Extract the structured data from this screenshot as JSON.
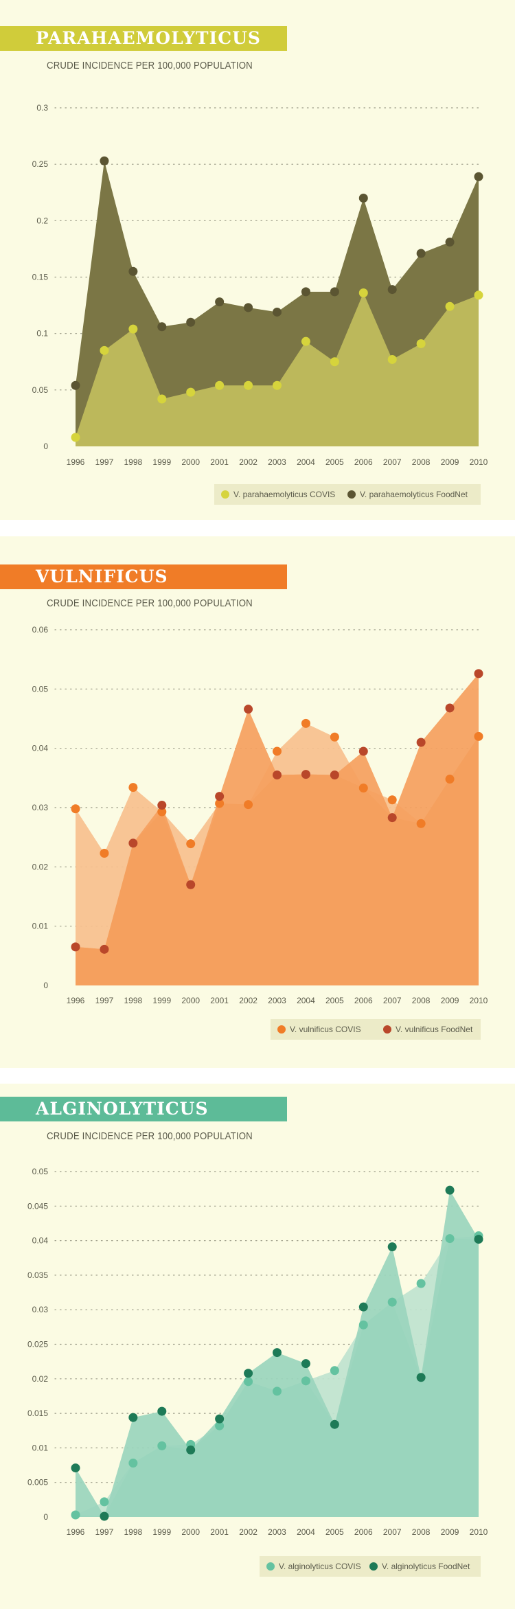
{
  "panels": [
    {
      "title": "PARAHAEMOLYTICUS",
      "subtitle": "CRUDE INCIDENCE PER 100,000 POPULATION",
      "banner_color": "#d0cc3a",
      "fill_colors": [
        "#bcb85b",
        "#7b7645"
      ],
      "dot_colors": [
        "#d6d43c",
        "#5b5532"
      ],
      "legend": [
        "V. parahaemolyticus COVIS",
        "V. parahaemolyticus FoodNet"
      ]
    },
    {
      "title": "VULNIFICUS",
      "subtitle": "CRUDE INCIDENCE PER 100,000 POPULATION",
      "banner_color": "#f07c27",
      "fill_colors": [
        "#f7c08e",
        "#f5a05e"
      ],
      "dot_colors": [
        "#f07c27",
        "#b9472a"
      ],
      "legend": [
        "V. vulnificus COVIS",
        "V. vulnificus FoodNet"
      ]
    },
    {
      "title": "ALGINOLYTICUS",
      "subtitle": "CRUDE INCIDENCE PER 100,000 POPULATION",
      "banner_color": "#5dbb98",
      "fill_colors": [
        "#bfe3cf",
        "#9ad5bd"
      ],
      "dot_colors": [
        "#64c2a0",
        "#1e7a57"
      ],
      "legend": [
        "V. alginolyticus COVIS",
        "V. alginolyticus FoodNet"
      ]
    }
  ],
  "chart_data": [
    {
      "type": "area",
      "title": "PARAHAEMOLYTICUS",
      "ylabel": "CRUDE INCIDENCE PER 100,000 POPULATION",
      "x": [
        "1996",
        "1997",
        "1998",
        "1999",
        "2000",
        "2001",
        "2002",
        "2003",
        "2004",
        "2005",
        "2006",
        "2007",
        "2008",
        "2009",
        "2010"
      ],
      "ylim": [
        0,
        0.3
      ],
      "yticks": [
        "0",
        "0.05",
        "0.1",
        "0.15",
        "0.2",
        "0.25",
        "0.3"
      ],
      "grid": true,
      "legend_position": "bottom-right",
      "series": [
        {
          "name": "V. parahaemolyticus COVIS",
          "values": [
            0.008,
            0.085,
            0.104,
            0.042,
            0.048,
            0.054,
            0.054,
            0.054,
            0.093,
            0.075,
            0.136,
            0.077,
            0.091,
            0.124,
            0.134
          ]
        },
        {
          "name": "V. parahaemolyticus FoodNet",
          "values": [
            0.054,
            0.253,
            0.155,
            0.106,
            0.11,
            0.128,
            0.123,
            0.119,
            0.137,
            0.137,
            0.22,
            0.139,
            0.171,
            0.181,
            0.239
          ]
        }
      ]
    },
    {
      "type": "area",
      "title": "VULNIFICUS",
      "ylabel": "CRUDE INCIDENCE PER 100,000 POPULATION",
      "x": [
        "1996",
        "1997",
        "1998",
        "1999",
        "2000",
        "2001",
        "2002",
        "2003",
        "2004",
        "2005",
        "2006",
        "2007",
        "2008",
        "2009",
        "2010"
      ],
      "ylim": [
        0,
        0.06
      ],
      "yticks": [
        "0",
        "0.01",
        "0.02",
        "0.03",
        "0.04",
        "0.05",
        "0.06"
      ],
      "grid": true,
      "legend_position": "bottom-right",
      "series": [
        {
          "name": "V. vulnificus COVIS",
          "values": [
            0.0298,
            0.0223,
            0.0334,
            0.0293,
            0.0239,
            0.0307,
            0.0305,
            0.0395,
            0.0442,
            0.0419,
            0.0333,
            0.0313,
            0.0273,
            0.0348,
            0.042
          ]
        },
        {
          "name": "V. vulnificus FoodNet",
          "values": [
            0.0065,
            0.0061,
            0.024,
            0.0304,
            0.017,
            0.0319,
            0.0466,
            0.0355,
            0.0356,
            0.0355,
            0.0395,
            0.0283,
            0.041,
            0.0468,
            0.0526
          ]
        }
      ]
    },
    {
      "type": "area",
      "title": "ALGINOLYTICUS",
      "ylabel": "CRUDE INCIDENCE PER 100,000 POPULATION",
      "x": [
        "1996",
        "1997",
        "1998",
        "1999",
        "2000",
        "2001",
        "2002",
        "2003",
        "2004",
        "2005",
        "2006",
        "2007",
        "2008",
        "2009",
        "2010"
      ],
      "ylim": [
        0,
        0.05
      ],
      "yticks": [
        "0",
        "0.005",
        "0.01",
        "0.015",
        "0.02",
        "0.025",
        "0.03",
        "0.035",
        "0.04",
        "0.045",
        "0.05"
      ],
      "grid": true,
      "legend_position": "bottom-right",
      "series": [
        {
          "name": "V. alginolyticus COVIS",
          "values": [
            0.0003,
            0.0022,
            0.0078,
            0.0103,
            0.0105,
            0.0132,
            0.0196,
            0.0182,
            0.0197,
            0.0212,
            0.0278,
            0.0311,
            0.0338,
            0.0403,
            0.0407
          ]
        },
        {
          "name": "V. alginolyticus FoodNet",
          "values": [
            0.0071,
            0.0001,
            0.0144,
            0.0153,
            0.0097,
            0.0142,
            0.0208,
            0.0238,
            0.0222,
            0.0134,
            0.0304,
            0.0391,
            0.0202,
            0.0473,
            0.0402
          ]
        }
      ]
    }
  ]
}
